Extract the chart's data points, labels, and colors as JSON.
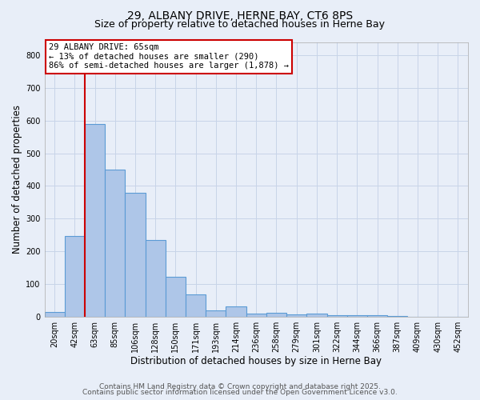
{
  "title": "29, ALBANY DRIVE, HERNE BAY, CT6 8PS",
  "subtitle": "Size of property relative to detached houses in Herne Bay",
  "xlabel": "Distribution of detached houses by size in Herne Bay",
  "ylabel": "Number of detached properties",
  "categories": [
    "20sqm",
    "42sqm",
    "63sqm",
    "85sqm",
    "106sqm",
    "128sqm",
    "150sqm",
    "171sqm",
    "193sqm",
    "214sqm",
    "236sqm",
    "258sqm",
    "279sqm",
    "301sqm",
    "322sqm",
    "344sqm",
    "366sqm",
    "387sqm",
    "409sqm",
    "430sqm",
    "452sqm"
  ],
  "values": [
    15,
    248,
    590,
    450,
    378,
    235,
    122,
    68,
    20,
    32,
    10,
    13,
    8,
    10,
    5,
    4,
    5,
    3,
    1,
    1,
    1
  ],
  "bar_color": "#aec6e8",
  "bar_edge_color": "#5b9bd5",
  "property_index": 2,
  "property_line_color": "#cc0000",
  "annotation_line1": "29 ALBANY DRIVE: 65sqm",
  "annotation_line2": "← 13% of detached houses are smaller (290)",
  "annotation_line3": "86% of semi-detached houses are larger (1,878) →",
  "annotation_box_color": "#ffffff",
  "annotation_box_edge": "#cc0000",
  "ylim": [
    0,
    840
  ],
  "yticks": [
    0,
    100,
    200,
    300,
    400,
    500,
    600,
    700,
    800
  ],
  "footer1": "Contains HM Land Registry data © Crown copyright and database right 2025.",
  "footer2": "Contains public sector information licensed under the Open Government Licence v3.0.",
  "bg_color": "#e8eef8",
  "grid_color": "#c8d4e8",
  "title_fontsize": 10,
  "subtitle_fontsize": 9,
  "axis_label_fontsize": 8.5,
  "tick_fontsize": 7,
  "annot_fontsize": 7.5,
  "footer_fontsize": 6.5
}
